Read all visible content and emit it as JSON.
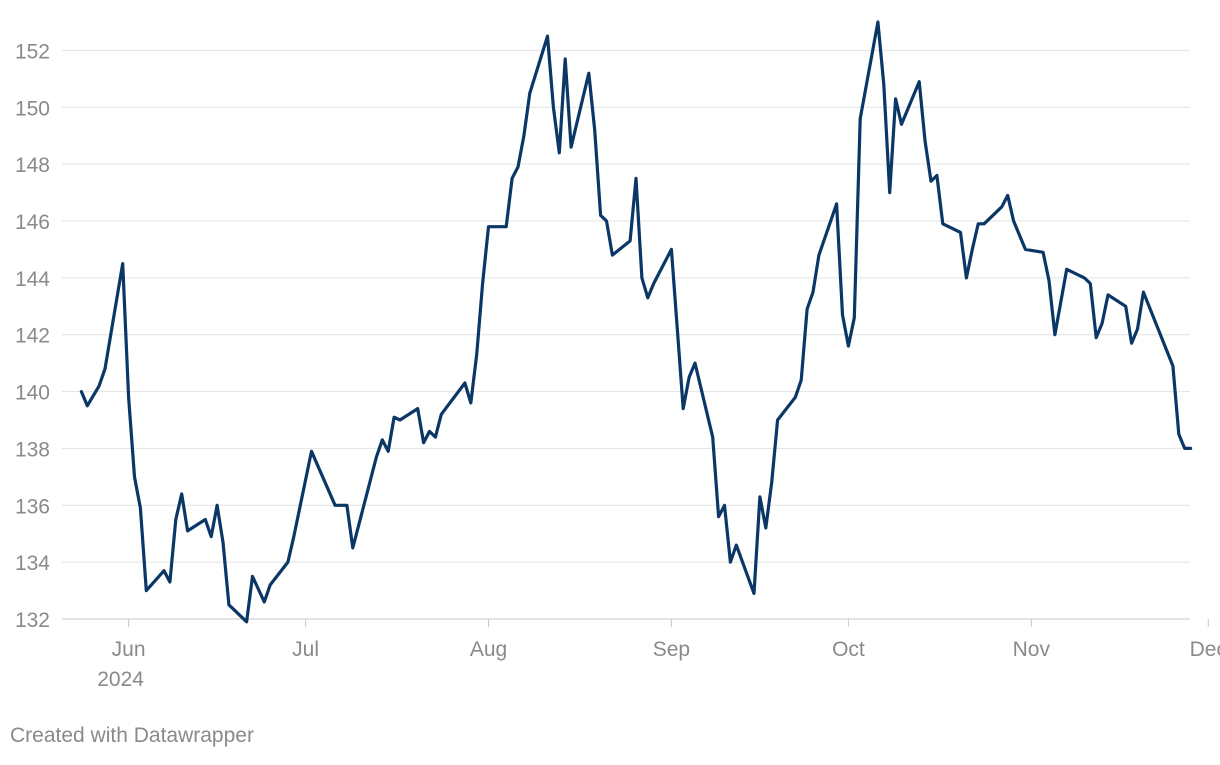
{
  "footer": {
    "credit": "Created with Datawrapper"
  },
  "chart_data": {
    "type": "line",
    "title": "",
    "xlabel": "",
    "ylabel": "",
    "line_color": "#0b3766",
    "grid": true,
    "y_ticks": [
      132,
      134,
      136,
      138,
      140,
      142,
      144,
      146,
      148,
      150,
      152
    ],
    "ylim": [
      131.5,
      153
    ],
    "xlim": [
      "2024-05-28",
      "2024-12-01"
    ],
    "x_ticks": [
      {
        "date": "2024-06-01",
        "label": "Jun",
        "sublabel": "2024"
      },
      {
        "date": "2024-07-01",
        "label": "Jul"
      },
      {
        "date": "2024-08-01",
        "label": "Aug"
      },
      {
        "date": "2024-09-01",
        "label": "Sep"
      },
      {
        "date": "2024-10-01",
        "label": "Oct"
      },
      {
        "date": "2024-11-01",
        "label": "Nov"
      },
      {
        "date": "2024-12-01",
        "label": "Dec"
      }
    ],
    "series": [
      {
        "points": [
          [
            "2024-05-24",
            140.0
          ],
          [
            "2024-05-25",
            139.5
          ],
          [
            "2024-05-27",
            140.2
          ],
          [
            "2024-05-28",
            140.8
          ],
          [
            "2024-05-31",
            144.5
          ],
          [
            "2024-06-01",
            139.8
          ],
          [
            "2024-06-02",
            137.0
          ],
          [
            "2024-06-03",
            135.9
          ],
          [
            "2024-06-04",
            133.0
          ],
          [
            "2024-06-07",
            133.7
          ],
          [
            "2024-06-08",
            133.3
          ],
          [
            "2024-06-09",
            135.5
          ],
          [
            "2024-06-10",
            136.4
          ],
          [
            "2024-06-11",
            135.1
          ],
          [
            "2024-06-14",
            135.5
          ],
          [
            "2024-06-15",
            134.9
          ],
          [
            "2024-06-16",
            136.0
          ],
          [
            "2024-06-17",
            134.7
          ],
          [
            "2024-06-18",
            132.5
          ],
          [
            "2024-06-21",
            131.9
          ],
          [
            "2024-06-22",
            133.5
          ],
          [
            "2024-06-24",
            132.6
          ],
          [
            "2024-06-25",
            133.2
          ],
          [
            "2024-06-28",
            134.0
          ],
          [
            "2024-06-29",
            134.9
          ],
          [
            "2024-07-02",
            137.9
          ],
          [
            "2024-07-06",
            136.0
          ],
          [
            "2024-07-08",
            136.0
          ],
          [
            "2024-07-09",
            134.5
          ],
          [
            "2024-07-10",
            135.3
          ],
          [
            "2024-07-13",
            137.7
          ],
          [
            "2024-07-14",
            138.3
          ],
          [
            "2024-07-15",
            137.9
          ],
          [
            "2024-07-16",
            139.1
          ],
          [
            "2024-07-17",
            139.0
          ],
          [
            "2024-07-20",
            139.4
          ],
          [
            "2024-07-21",
            138.2
          ],
          [
            "2024-07-22",
            138.6
          ],
          [
            "2024-07-23",
            138.4
          ],
          [
            "2024-07-24",
            139.2
          ],
          [
            "2024-07-28",
            140.3
          ],
          [
            "2024-07-29",
            139.6
          ],
          [
            "2024-07-30",
            141.3
          ],
          [
            "2024-07-31",
            143.8
          ],
          [
            "2024-08-01",
            145.8
          ],
          [
            "2024-08-04",
            145.8
          ],
          [
            "2024-08-05",
            147.5
          ],
          [
            "2024-08-06",
            147.9
          ],
          [
            "2024-08-07",
            149.0
          ],
          [
            "2024-08-08",
            150.5
          ],
          [
            "2024-08-11",
            152.5
          ],
          [
            "2024-08-12",
            150.0
          ],
          [
            "2024-08-13",
            148.4
          ],
          [
            "2024-08-14",
            151.7
          ],
          [
            "2024-08-15",
            148.6
          ],
          [
            "2024-08-18",
            151.2
          ],
          [
            "2024-08-19",
            149.2
          ],
          [
            "2024-08-20",
            146.2
          ],
          [
            "2024-08-21",
            146.0
          ],
          [
            "2024-08-22",
            144.8
          ],
          [
            "2024-08-25",
            145.3
          ],
          [
            "2024-08-26",
            147.5
          ],
          [
            "2024-08-27",
            144.0
          ],
          [
            "2024-08-28",
            143.3
          ],
          [
            "2024-08-29",
            143.8
          ],
          [
            "2024-09-01",
            145.0
          ],
          [
            "2024-09-02",
            142.2
          ],
          [
            "2024-09-03",
            139.4
          ],
          [
            "2024-09-04",
            140.5
          ],
          [
            "2024-09-05",
            141.0
          ],
          [
            "2024-09-08",
            138.4
          ],
          [
            "2024-09-09",
            135.6
          ],
          [
            "2024-09-10",
            136.0
          ],
          [
            "2024-09-11",
            134.0
          ],
          [
            "2024-09-12",
            134.6
          ],
          [
            "2024-09-15",
            132.9
          ],
          [
            "2024-09-16",
            136.3
          ],
          [
            "2024-09-17",
            135.2
          ],
          [
            "2024-09-18",
            136.8
          ],
          [
            "2024-09-19",
            139.0
          ],
          [
            "2024-09-22",
            139.8
          ],
          [
            "2024-09-23",
            140.4
          ],
          [
            "2024-09-24",
            142.9
          ],
          [
            "2024-09-25",
            143.5
          ],
          [
            "2024-09-26",
            144.8
          ],
          [
            "2024-09-29",
            146.6
          ],
          [
            "2024-09-30",
            142.7
          ],
          [
            "2024-10-01",
            141.6
          ],
          [
            "2024-10-02",
            142.6
          ],
          [
            "2024-10-03",
            149.6
          ],
          [
            "2024-10-06",
            153.0
          ],
          [
            "2024-10-07",
            150.8
          ],
          [
            "2024-10-08",
            147.0
          ],
          [
            "2024-10-09",
            150.3
          ],
          [
            "2024-10-10",
            149.4
          ],
          [
            "2024-10-13",
            150.9
          ],
          [
            "2024-10-14",
            148.8
          ],
          [
            "2024-10-15",
            147.4
          ],
          [
            "2024-10-16",
            147.6
          ],
          [
            "2024-10-17",
            145.9
          ],
          [
            "2024-10-20",
            145.6
          ],
          [
            "2024-10-21",
            144.0
          ],
          [
            "2024-10-22",
            145.0
          ],
          [
            "2024-10-23",
            145.9
          ],
          [
            "2024-10-24",
            145.9
          ],
          [
            "2024-10-27",
            146.5
          ],
          [
            "2024-10-28",
            146.9
          ],
          [
            "2024-10-29",
            146.0
          ],
          [
            "2024-10-31",
            145.0
          ],
          [
            "2024-11-03",
            144.9
          ],
          [
            "2024-11-04",
            143.9
          ],
          [
            "2024-11-05",
            142.0
          ],
          [
            "2024-11-07",
            144.3
          ],
          [
            "2024-11-10",
            144.0
          ],
          [
            "2024-11-11",
            143.8
          ],
          [
            "2024-11-12",
            141.9
          ],
          [
            "2024-11-13",
            142.4
          ],
          [
            "2024-11-14",
            143.4
          ],
          [
            "2024-11-17",
            143.0
          ],
          [
            "2024-11-18",
            141.7
          ],
          [
            "2024-11-19",
            142.2
          ],
          [
            "2024-11-20",
            143.5
          ],
          [
            "2024-11-25",
            140.9
          ],
          [
            "2024-11-26",
            138.5
          ],
          [
            "2024-11-27",
            138.0
          ],
          [
            "2024-11-28",
            138.0
          ]
        ]
      }
    ]
  }
}
